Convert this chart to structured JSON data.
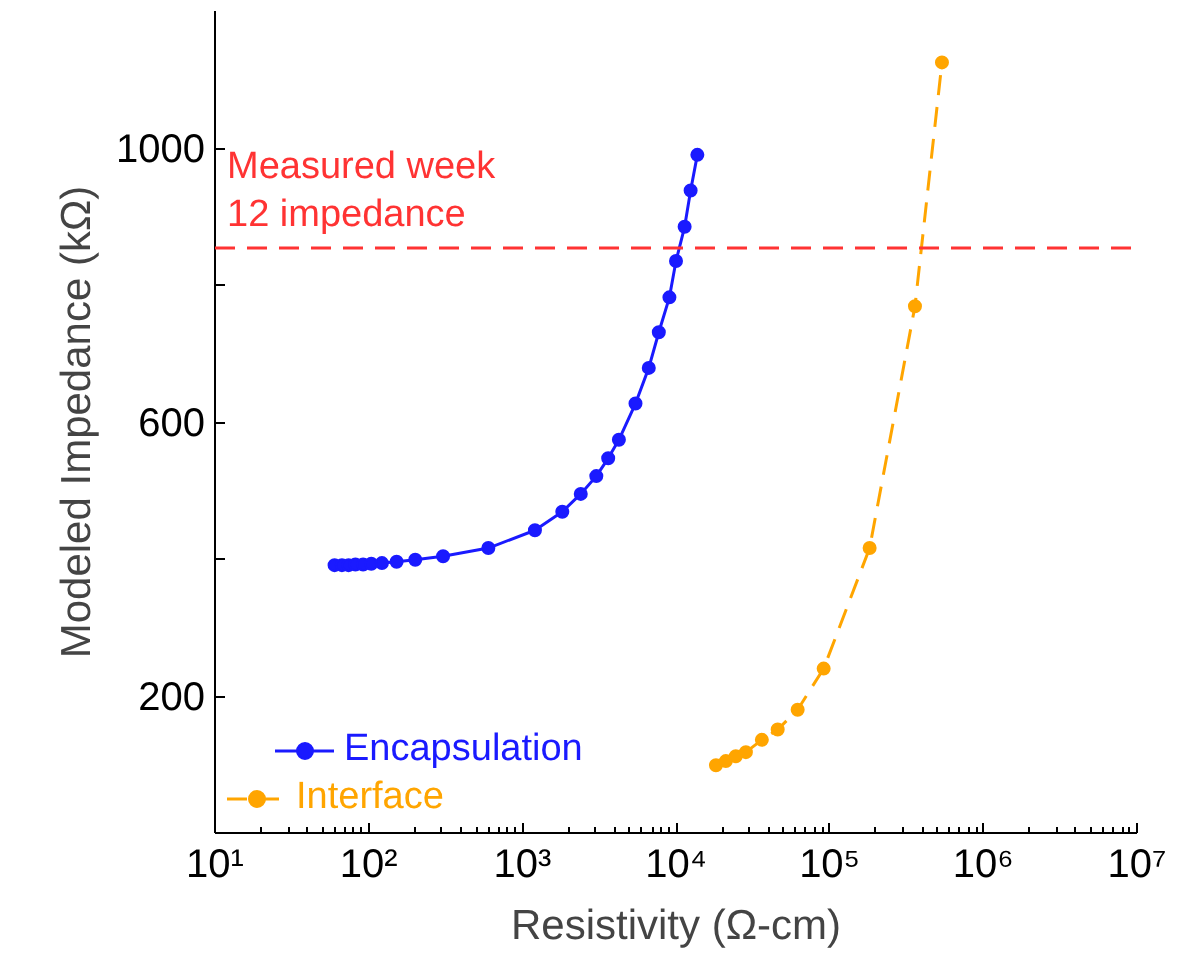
{
  "chart_data": {
    "type": "line",
    "xlabel": "Resistivity (Ω-cm)",
    "ylabel": "Modeled Impedance (kΩ)",
    "log": "x",
    "xlim": [
      10,
      10000000
    ],
    "xticks": [
      {
        "value": 10,
        "label": "10¹"
      },
      {
        "value": 100,
        "label": "10²"
      },
      {
        "value": 1000,
        "label": "10³"
      },
      {
        "value": 10000,
        "label": "10⁴"
      },
      {
        "value": 100000,
        "label": "10⁵"
      },
      {
        "value": 1000000,
        "label": "10⁶"
      },
      {
        "value": 10000000,
        "label": "10⁷"
      }
    ],
    "ylim": [
      0,
      1200
    ],
    "yticks": [
      {
        "value": 200,
        "label": "200"
      },
      {
        "value": 400,
        "label": null
      },
      {
        "value": 600,
        "label": "600"
      },
      {
        "value": 800,
        "label": null
      },
      {
        "value": 1000,
        "label": "1000"
      }
    ],
    "grid": false,
    "legend": "bottom left",
    "marker": "circle",
    "ref_lines": [
      {
        "axis": "y",
        "value": 854,
        "label": "Measured week\n12 impedance",
        "color": "#ff3333",
        "line_style": "dashed"
      }
    ],
    "series": [
      {
        "name": "Encapsulation",
        "color": "#1a1aff",
        "line_style": "solid",
        "x": [
          60,
          67,
          74,
          82,
          92,
          104,
          122,
          152,
          201,
          305,
          601,
          1208,
          1820,
          2400,
          3030,
          3620,
          4250,
          5450,
          6650,
          7730,
          9060,
          10000,
          11380,
          12450,
          13770
        ],
        "values": [
          391,
          391,
          391,
          392,
          392,
          393,
          394,
          396,
          399,
          404,
          416,
          442,
          469,
          495,
          521,
          547,
          574,
          627,
          679,
          731,
          782,
          835,
          885,
          938,
          990
        ]
      },
      {
        "name": "Interface",
        "color": "#ffa500",
        "line_style": "dashed",
        "x": [
          18200,
          21100,
          24500,
          28500,
          36200,
          45900,
          61900,
          91400,
          182000,
          359000,
          538000
        ],
        "values": [
          99,
          105,
          112,
          118,
          136,
          151,
          180,
          240,
          416,
          769,
          1125
        ]
      }
    ]
  }
}
